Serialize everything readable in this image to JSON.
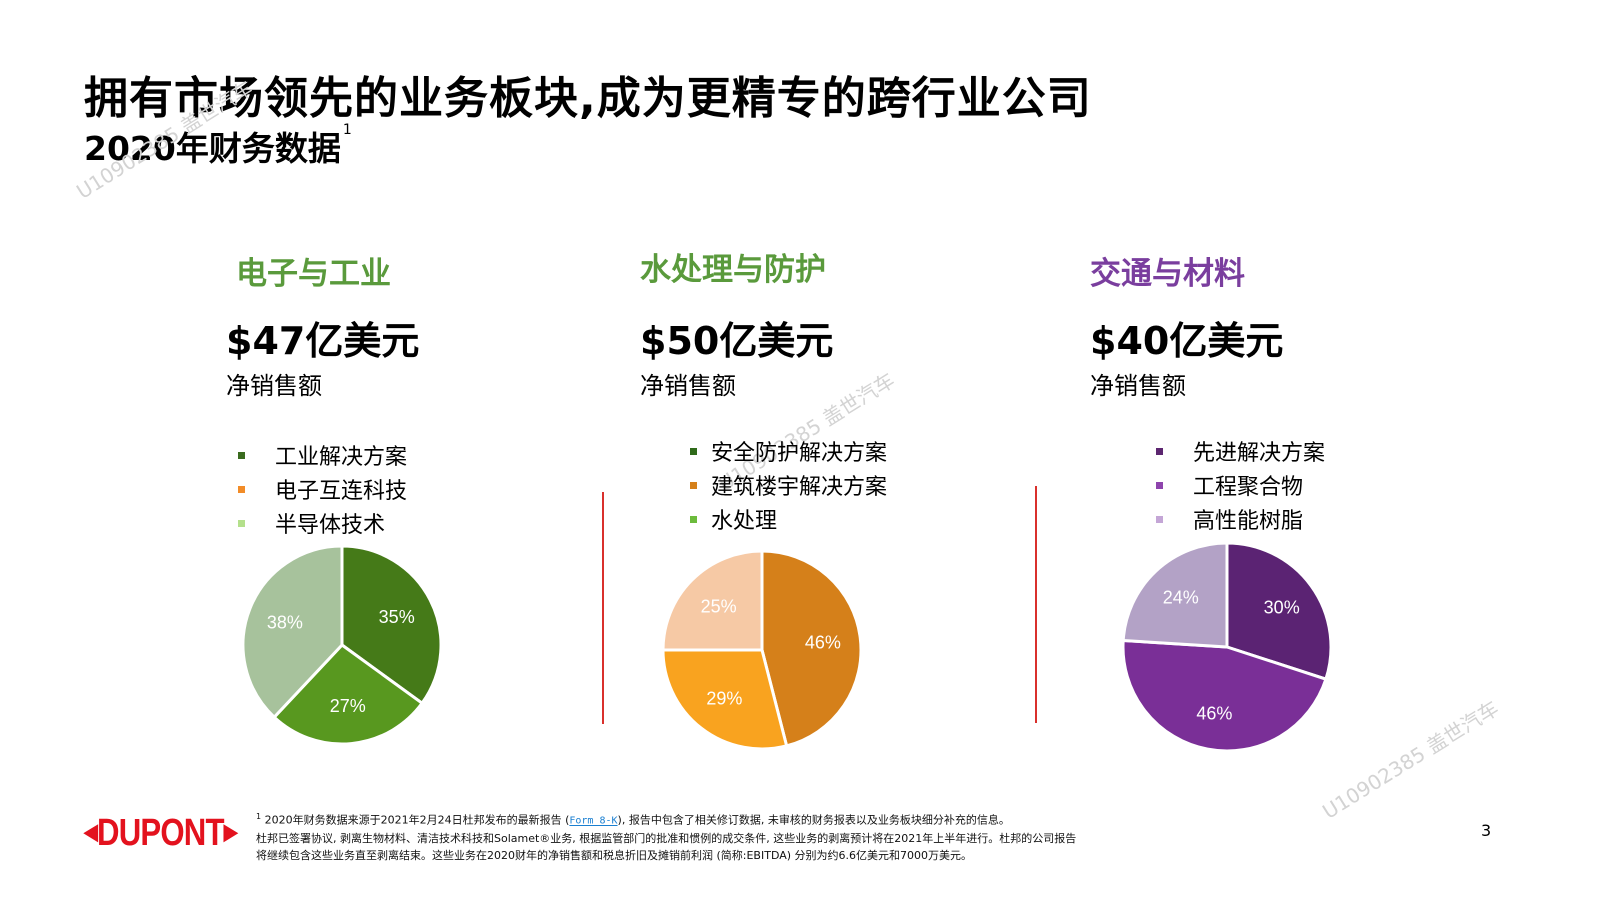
{
  "header": {
    "title": "拥有市场领先的业务板块,成为更精专的跨行业公司",
    "subtitle": "2020年财务数据",
    "footnote_marker": "1"
  },
  "segments": [
    {
      "name": "电子与工业",
      "name_color": "#5a9a3c",
      "value": "$47亿美元",
      "metric": "净销售额",
      "legend": [
        {
          "label": "工业解决方案",
          "color": "#3a6b1e"
        },
        {
          "label": "电子互连科技",
          "color": "#f28c28"
        },
        {
          "label": "半导体技术",
          "color": "#b4e08c"
        }
      ]
    },
    {
      "name": "水处理与防护",
      "name_color": "#5a9a3c",
      "value": "$50亿美元",
      "metric": "净销售额",
      "legend": [
        {
          "label": "安全防护解决方案",
          "color": "#2f6a1a"
        },
        {
          "label": "建筑楼宇解决方案",
          "color": "#d5801a"
        },
        {
          "label": "水处理",
          "color": "#6cbb3c"
        }
      ]
    },
    {
      "name": "交通与材料",
      "name_color": "#7a3e9e",
      "value": "$40亿美元",
      "metric": "净销售额",
      "legend": [
        {
          "label": "先进解决方案",
          "color": "#5c2670"
        },
        {
          "label": "工程聚合物",
          "color": "#8e44ad"
        },
        {
          "label": "高性能树脂",
          "color": "#c4a6d6"
        }
      ]
    }
  ],
  "chart_data": [
    {
      "type": "pie",
      "categories": [
        "工业解决方案",
        "电子互连科技",
        "半导体技术"
      ],
      "values": [
        35,
        27,
        38
      ],
      "labels": [
        "35%",
        "27%",
        "38%"
      ],
      "colors": [
        "#457a18",
        "#58981f",
        "#a7c29c"
      ],
      "label_colors": [
        "#ffffff",
        "#ffffff",
        "#ffffff"
      ]
    },
    {
      "type": "pie",
      "categories": [
        "建筑楼宇解决方案",
        "水处理",
        "安全防护解决方案"
      ],
      "values": [
        46,
        29,
        25
      ],
      "labels": [
        "46%",
        "29%",
        "25%"
      ],
      "colors": [
        "#d5801a",
        "#f9a31f",
        "#f6c9a5"
      ],
      "label_colors": [
        "#ffffff",
        "#ffffff",
        "#ffffff"
      ]
    },
    {
      "type": "pie",
      "categories": [
        "先进解决方案",
        "工程聚合物",
        "高性能树脂"
      ],
      "values": [
        30,
        46,
        24
      ],
      "labels": [
        "30%",
        "46%",
        "24%"
      ],
      "colors": [
        "#5b2373",
        "#7a2f97",
        "#b3a2c6"
      ],
      "label_colors": [
        "#ffffff",
        "#ffffff",
        "#ffffff"
      ]
    }
  ],
  "footer": {
    "marker": "1",
    "line1_pre": "2020年财务数据来源于2021年2月24日杜邦发布的最新报告 (",
    "line1_link": "Form 8-K",
    "line1_post": "), 报告中包含了相关修订数据, 未审核的财务报表以及业务板块细分补充的信息。",
    "line2": "杜邦已签署协议, 剥离生物材料、清洁技术科技和Solamet®业务, 根据监管部门的批准和惯例的成交条件, 这些业务的剥离预计将在2021年上半年进行。杜邦的公司报告",
    "line3": "将继续包含这些业务直至剥离结束。这些业务在2020财年的净销售额和税息折旧及摊销前利润 (简称:EBITDA) 分别为约6.6亿美元和7000万美元。"
  },
  "page_number": "3",
  "logo": {
    "text": "DUPONT",
    "color": "#e3121e"
  },
  "watermarks": [
    "U10902385 盖世汽车",
    "U10902385 盖世汽车",
    "U10902385 盖世汽车"
  ]
}
